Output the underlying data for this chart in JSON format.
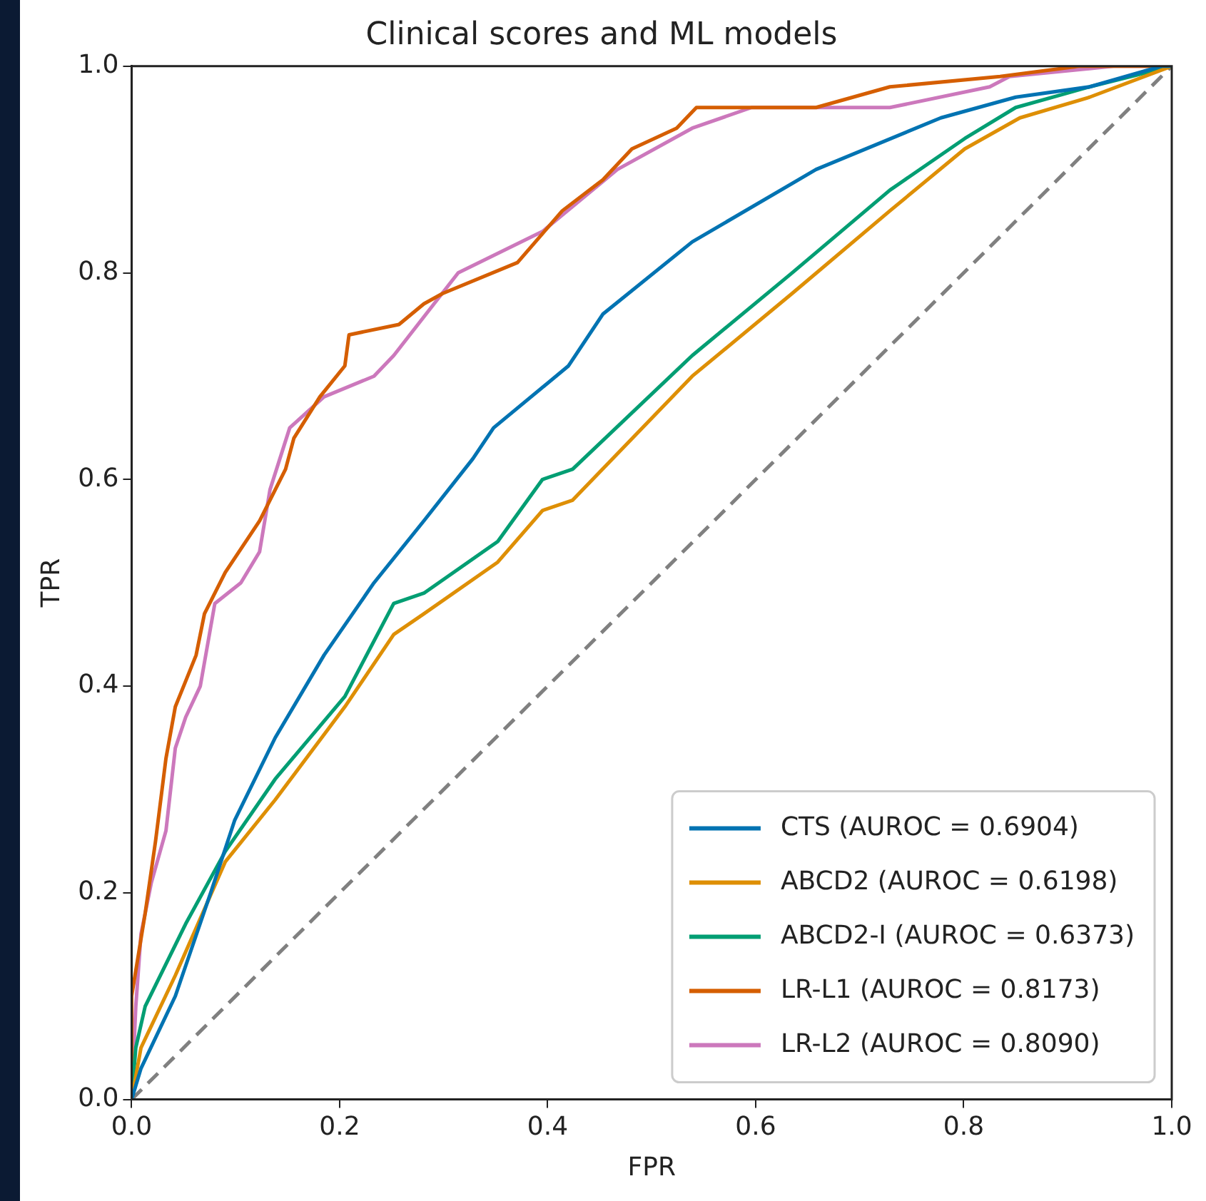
{
  "chart_data": {
    "type": "line",
    "title": "Clinical scores and ML models",
    "xlabel": "FPR",
    "ylabel": "TPR",
    "xlim": [
      0,
      1
    ],
    "ylim": [
      0,
      1
    ],
    "xticks": [
      {
        "value": 0,
        "label": "0.0"
      },
      {
        "value": 0.2,
        "label": "0.2"
      },
      {
        "value": 0.4,
        "label": "0.4"
      },
      {
        "value": 0.6,
        "label": "0.6"
      },
      {
        "value": 0.8,
        "label": "0.8"
      },
      {
        "value": 1,
        "label": "1.0"
      }
    ],
    "yticks": [
      {
        "value": 0,
        "label": "0.0"
      },
      {
        "value": 0.2,
        "label": "0.2"
      },
      {
        "value": 0.4,
        "label": "0.4"
      },
      {
        "value": 0.6,
        "label": "0.6"
      },
      {
        "value": 0.8,
        "label": "0.8"
      },
      {
        "value": 1,
        "label": "1.0"
      }
    ],
    "grid": false,
    "legend": "bottom right",
    "marker": "none",
    "series": [
      {
        "name": "CTS (AUROC = 0.6904)",
        "color": "#0173b2",
        "x": [
          0,
          0.009,
          0.042,
          0.076,
          0.099,
          0.138,
          0.185,
          0.233,
          0.281,
          0.328,
          0.348,
          0.42,
          0.453,
          0.539,
          0.658,
          0.778,
          0.85,
          0.921,
          0.99,
          1
        ],
        "values": [
          0,
          0.03,
          0.1,
          0.2,
          0.27,
          0.35,
          0.43,
          0.5,
          0.56,
          0.62,
          0.65,
          0.71,
          0.76,
          0.83,
          0.9,
          0.95,
          0.97,
          0.98,
          1,
          1
        ]
      },
      {
        "name": "ABCD2 (AUROC = 0.6198)",
        "color": "#de8f05",
        "x": [
          0,
          0.009,
          0.042,
          0.09,
          0.138,
          0.205,
          0.252,
          0.281,
          0.352,
          0.395,
          0.424,
          0.539,
          0.635,
          0.729,
          0.801,
          0.854,
          0.921,
          1
        ],
        "values": [
          0,
          0.05,
          0.12,
          0.23,
          0.29,
          0.38,
          0.45,
          0.47,
          0.52,
          0.57,
          0.58,
          0.7,
          0.78,
          0.86,
          0.92,
          0.95,
          0.97,
          1
        ]
      },
      {
        "name": "ABCD2-I (AUROC = 0.6373)",
        "color": "#029e73",
        "x": [
          0,
          0.004,
          0.013,
          0.052,
          0.09,
          0.138,
          0.205,
          0.252,
          0.281,
          0.352,
          0.395,
          0.424,
          0.539,
          0.635,
          0.729,
          0.801,
          0.85,
          0.921,
          1
        ],
        "values": [
          0,
          0.05,
          0.09,
          0.17,
          0.24,
          0.31,
          0.39,
          0.48,
          0.49,
          0.54,
          0.6,
          0.61,
          0.72,
          0.8,
          0.88,
          0.93,
          0.96,
          0.98,
          1
        ]
      },
      {
        "name": "LR-L1 (AUROC = 0.8173)",
        "color": "#d55e00",
        "x": [
          0,
          0,
          0.013,
          0.023,
          0.033,
          0.042,
          0.062,
          0.07,
          0.09,
          0.123,
          0.148,
          0.156,
          0.181,
          0.205,
          0.209,
          0.257,
          0.281,
          0.299,
          0.371,
          0.414,
          0.453,
          0.481,
          0.524,
          0.543,
          0.658,
          0.729,
          0.835,
          0.911,
          1
        ],
        "values": [
          0,
          0.1,
          0.18,
          0.25,
          0.33,
          0.38,
          0.43,
          0.47,
          0.51,
          0.56,
          0.61,
          0.64,
          0.68,
          0.71,
          0.74,
          0.75,
          0.77,
          0.78,
          0.81,
          0.86,
          0.89,
          0.92,
          0.94,
          0.96,
          0.96,
          0.98,
          0.99,
          1,
          1
        ]
      },
      {
        "name": "LR-L2 (AUROC = 0.8090)",
        "color": "#cc78bc",
        "x": [
          0,
          0.004,
          0.009,
          0.019,
          0.033,
          0.042,
          0.052,
          0.066,
          0.08,
          0.105,
          0.123,
          0.133,
          0.152,
          0.185,
          0.233,
          0.252,
          0.314,
          0.395,
          0.467,
          0.539,
          0.596,
          0.729,
          0.825,
          0.844,
          0.944,
          1
        ],
        "values": [
          0,
          0.09,
          0.16,
          0.21,
          0.26,
          0.34,
          0.37,
          0.4,
          0.48,
          0.5,
          0.53,
          0.59,
          0.65,
          0.68,
          0.7,
          0.72,
          0.8,
          0.84,
          0.9,
          0.94,
          0.96,
          0.96,
          0.98,
          0.99,
          1,
          1
        ]
      },
      {
        "color": "#808080",
        "line_style": "dashed",
        "x": [
          0,
          1
        ],
        "values": [
          0,
          1
        ]
      }
    ]
  }
}
